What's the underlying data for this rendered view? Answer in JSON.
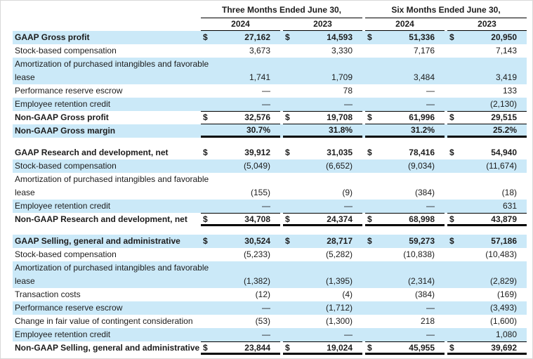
{
  "currency_symbol": "$",
  "colors": {
    "row_highlight": "#cbe9f8",
    "rule_line": "#000000",
    "text": "#1c1c1c"
  },
  "header": {
    "groups": [
      "Three Months Ended June 30,",
      "Six Months Ended June 30,"
    ],
    "years": [
      "2024",
      "2023",
      "2024",
      "2023"
    ]
  },
  "rows": [
    {
      "label": "GAAP Gross profit",
      "bold": true,
      "shaded": true,
      "dollar": true,
      "rule": "",
      "values": [
        "27,162",
        "14,593",
        "51,336",
        "20,950"
      ]
    },
    {
      "label": "Stock-based compensation",
      "bold": false,
      "shaded": false,
      "dollar": false,
      "rule": "",
      "values": [
        "3,673",
        "3,330",
        "7,176",
        "7,143"
      ]
    },
    {
      "label": "Amortization of purchased intangibles and favorable",
      "label2": "lease",
      "bold": false,
      "shaded": true,
      "dollar": false,
      "rule": "",
      "values": [
        "1,741",
        "1,709",
        "3,484",
        "3,419"
      ]
    },
    {
      "label": "Performance reserve escrow",
      "bold": false,
      "shaded": false,
      "dollar": false,
      "rule": "",
      "values": [
        "—",
        "78",
        "—",
        "133"
      ]
    },
    {
      "label": "Employee retention credit",
      "bold": false,
      "shaded": true,
      "dollar": false,
      "rule": "",
      "values": [
        "—",
        "—",
        "—",
        "(2,130)"
      ]
    },
    {
      "label": "Non-GAAP Gross profit",
      "bold": true,
      "shaded": false,
      "dollar": true,
      "rule": "mid",
      "values": [
        "32,576",
        "19,708",
        "61,996",
        "29,515"
      ]
    },
    {
      "label": "Non-GAAP Gross margin",
      "bold": true,
      "shaded": true,
      "dollar": false,
      "rule": "thick",
      "values": [
        "30.7%",
        "31.8%",
        "31.2%",
        "25.2%"
      ]
    },
    {
      "spacer": true
    },
    {
      "label": "GAAP Research and development, net",
      "bold": true,
      "shaded": false,
      "dollar": true,
      "rule": "",
      "values": [
        "39,912",
        "31,035",
        "78,416",
        "54,940"
      ]
    },
    {
      "label": "Stock-based compensation",
      "bold": false,
      "shaded": true,
      "dollar": false,
      "rule": "",
      "values": [
        "(5,049)",
        "(6,652)",
        "(9,034)",
        "(11,674)"
      ]
    },
    {
      "label": "Amortization of purchased intangibles and favorable",
      "label2": "lease",
      "bold": false,
      "shaded": false,
      "dollar": false,
      "rule": "",
      "values": [
        "(155)",
        "(9)",
        "(384)",
        "(18)"
      ]
    },
    {
      "label": "Employee retention credit",
      "bold": false,
      "shaded": true,
      "dollar": false,
      "rule": "",
      "values": [
        "—",
        "—",
        "—",
        "631"
      ]
    },
    {
      "label": "Non-GAAP Research and development, net",
      "bold": true,
      "shaded": false,
      "dollar": true,
      "rule": "end",
      "values": [
        "34,708",
        "24,374",
        "68,998",
        "43,879"
      ]
    },
    {
      "spacer": true
    },
    {
      "label": "GAAP Selling, general and administrative",
      "bold": true,
      "shaded": true,
      "dollar": true,
      "rule": "",
      "values": [
        "30,524",
        "28,717",
        "59,273",
        "57,186"
      ]
    },
    {
      "label": "Stock-based compensation",
      "bold": false,
      "shaded": false,
      "dollar": false,
      "rule": "",
      "values": [
        "(5,233)",
        "(5,282)",
        "(10,838)",
        "(10,483)"
      ]
    },
    {
      "label": "Amortization of purchased intangibles and favorable",
      "label2": "lease",
      "bold": false,
      "shaded": true,
      "dollar": false,
      "rule": "",
      "values": [
        "(1,382)",
        "(1,395)",
        "(2,314)",
        "(2,829)"
      ]
    },
    {
      "label": "Transaction costs",
      "bold": false,
      "shaded": false,
      "dollar": false,
      "rule": "",
      "values": [
        "(12)",
        "(4)",
        "(384)",
        "(169)"
      ]
    },
    {
      "label": "Performance reserve escrow",
      "bold": false,
      "shaded": true,
      "dollar": false,
      "rule": "",
      "values": [
        "—",
        "(1,712)",
        "—",
        "(3,493)"
      ]
    },
    {
      "label": "Change in fair value of contingent consideration",
      "bold": false,
      "shaded": false,
      "dollar": false,
      "rule": "",
      "values": [
        "(53)",
        "(1,300)",
        "218",
        "(1,600)"
      ]
    },
    {
      "label": "Employee retention credit",
      "bold": false,
      "shaded": true,
      "dollar": false,
      "rule": "",
      "values": [
        "—",
        "—",
        "—",
        "1,080"
      ]
    },
    {
      "label": "Non-GAAP Selling, general and administrative",
      "bold": true,
      "shaded": false,
      "dollar": true,
      "rule": "end",
      "values": [
        "23,844",
        "19,024",
        "45,955",
        "39,692"
      ]
    }
  ]
}
